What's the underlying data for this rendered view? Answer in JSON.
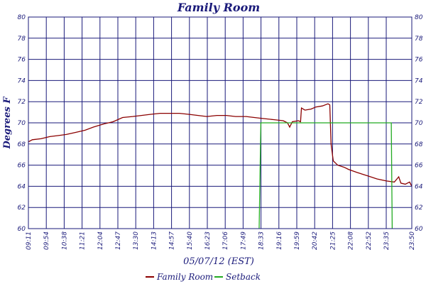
{
  "chart_data": {
    "type": "line",
    "title": "Family Room",
    "xlabel": "05/07/12 (EST)",
    "ylabel": "Degrees F",
    "grid": true,
    "legend_position": "bottom",
    "colors": {
      "frame": "#1a1a7a",
      "grid": "#1a1a7a",
      "family_room": "#8b0000",
      "setback": "#22aa22"
    },
    "x_ticks": [
      "09:11",
      "09:54",
      "10:38",
      "11:21",
      "12:04",
      "12:47",
      "13:30",
      "14:13",
      "14:57",
      "15:40",
      "16:23",
      "17:06",
      "17:49",
      "18:33",
      "19:16",
      "19:59",
      "20:42",
      "21:25",
      "22:08",
      "22:52",
      "23:35",
      "23:50"
    ],
    "ylim": [
      60,
      80
    ],
    "y_ticks": [
      60,
      62,
      64,
      66,
      68,
      70,
      72,
      74,
      76,
      78,
      80
    ],
    "series": [
      {
        "name": "Family Room",
        "color": "#8b0000",
        "points": [
          [
            "09:11",
            68.2
          ],
          [
            "09:20",
            68.4
          ],
          [
            "09:40",
            68.5
          ],
          [
            "10:00",
            68.7
          ],
          [
            "10:20",
            68.8
          ],
          [
            "10:38",
            68.9
          ],
          [
            "11:00",
            69.1
          ],
          [
            "11:21",
            69.3
          ],
          [
            "11:40",
            69.6
          ],
          [
            "12:04",
            69.9
          ],
          [
            "12:25",
            70.1
          ],
          [
            "12:47",
            70.5
          ],
          [
            "13:10",
            70.6
          ],
          [
            "13:30",
            70.7
          ],
          [
            "13:50",
            70.8
          ],
          [
            "14:13",
            70.9
          ],
          [
            "14:35",
            70.9
          ],
          [
            "14:57",
            70.9
          ],
          [
            "15:20",
            70.8
          ],
          [
            "15:40",
            70.7
          ],
          [
            "16:00",
            70.6
          ],
          [
            "16:23",
            70.7
          ],
          [
            "16:45",
            70.7
          ],
          [
            "17:06",
            70.6
          ],
          [
            "17:30",
            70.6
          ],
          [
            "17:49",
            70.5
          ],
          [
            "18:10",
            70.4
          ],
          [
            "18:33",
            70.3
          ],
          [
            "18:55",
            70.2
          ],
          [
            "19:05",
            70.0
          ],
          [
            "19:10",
            69.6
          ],
          [
            "19:16",
            70.1
          ],
          [
            "19:30",
            70.2
          ],
          [
            "19:35",
            70.1
          ],
          [
            "19:37",
            71.4
          ],
          [
            "19:45",
            71.2
          ],
          [
            "19:59",
            71.3
          ],
          [
            "20:10",
            71.5
          ],
          [
            "20:25",
            71.6
          ],
          [
            "20:38",
            71.8
          ],
          [
            "20:42",
            71.7
          ],
          [
            "20:45",
            68.0
          ],
          [
            "20:50",
            66.4
          ],
          [
            "21:00",
            66.0
          ],
          [
            "21:15",
            65.8
          ],
          [
            "21:25",
            65.6
          ],
          [
            "21:45",
            65.3
          ],
          [
            "22:08",
            65.0
          ],
          [
            "22:30",
            64.7
          ],
          [
            "22:52",
            64.5
          ],
          [
            "23:10",
            64.4
          ],
          [
            "23:20",
            64.9
          ],
          [
            "23:25",
            64.3
          ],
          [
            "23:35",
            64.2
          ],
          [
            "23:45",
            64.4
          ],
          [
            "23:50",
            64.0
          ]
        ]
      },
      {
        "name": "Setback",
        "color": "#22aa22",
        "points": [
          [
            "18:00",
            60
          ],
          [
            "18:04",
            70
          ],
          [
            "23:03",
            70
          ],
          [
            "23:05",
            60
          ]
        ]
      }
    ]
  }
}
